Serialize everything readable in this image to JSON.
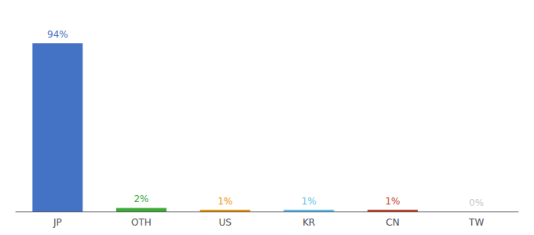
{
  "chart_data": {
    "type": "bar",
    "categories": [
      "JP",
      "OTH",
      "US",
      "KR",
      "CN",
      "TW"
    ],
    "values": [
      94,
      2,
      1,
      1,
      1,
      0
    ],
    "value_labels": [
      "94%",
      "2%",
      "1%",
      "1%",
      "1%",
      "0%"
    ],
    "colors": [
      "#4472c4",
      "#3aaa35",
      "#e8960a",
      "#5bbfea",
      "#c0412b",
      "#c8c8c8"
    ],
    "ylim": [
      0,
      105
    ],
    "data_labels": true,
    "tick_labels": "x",
    "grid": false
  }
}
